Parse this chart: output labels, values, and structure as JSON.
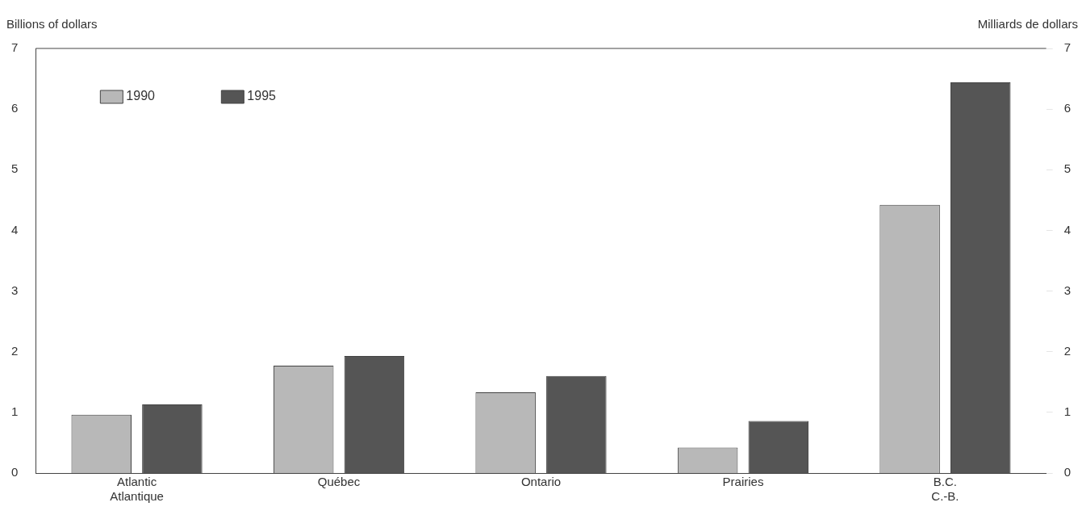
{
  "chart_data": {
    "type": "bar",
    "ylabel": "Billions of dollars",
    "y2label": "Milliards de dollars",
    "categories": [
      "Atlantic\nAtlantique",
      "Québec",
      "Ontario",
      "Prairies",
      "B.C.\nC.-B."
    ],
    "series": [
      {
        "name": "1990",
        "color": "#b8b8b8",
        "values": [
          0.96,
          1.77,
          1.33,
          0.42,
          4.42
        ]
      },
      {
        "name": "1995",
        "color": "#555555",
        "values": [
          1.13,
          1.93,
          1.6,
          0.86,
          6.44
        ]
      }
    ],
    "ylim": [
      0,
      7
    ],
    "yticks": [
      0,
      1,
      2,
      3,
      4,
      5,
      6,
      7
    ],
    "y2lim": [
      0,
      7
    ],
    "y2ticks": [
      0,
      1,
      2,
      3,
      4,
      5,
      6,
      7
    ],
    "grid": false,
    "legend": "top left"
  }
}
